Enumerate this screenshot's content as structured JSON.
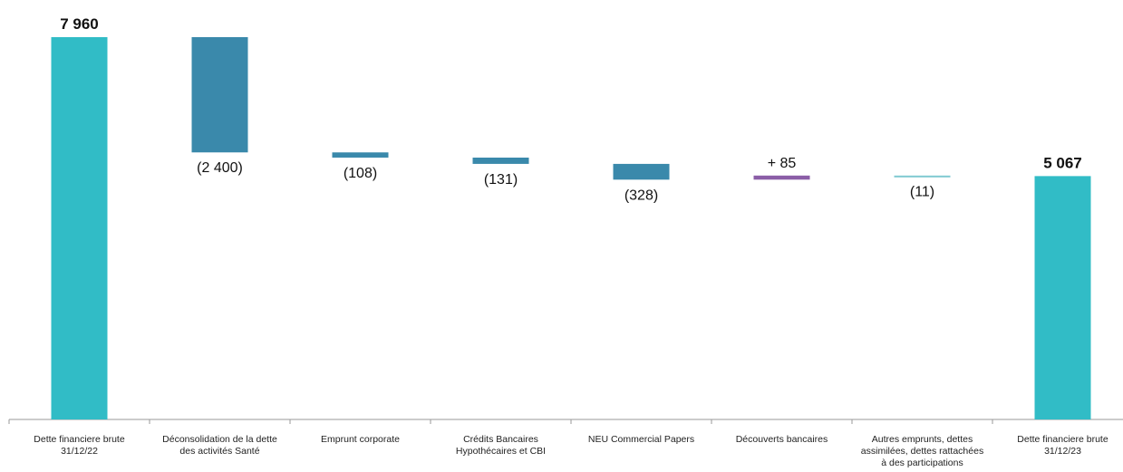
{
  "chart_data": {
    "type": "waterfall",
    "categories": [
      "Dette financiere brute\n31/12/22",
      "Déconsolidation de la dette\ndes activités Santé",
      "Emprunt corporate",
      "Crédits Bancaires\nHypothécaires et CBI",
      "NEU Commercial Papers",
      "Découverts bancaires",
      "Autres emprunts, dettes\nassimilées, dettes rattachées\nà des participations",
      "Dette financiere brute\n31/12/23"
    ],
    "values": [
      7960,
      -2400,
      -108,
      -131,
      -328,
      85,
      -11,
      5067
    ],
    "kinds": [
      "total",
      "delta",
      "delta",
      "delta",
      "delta",
      "delta",
      "delta",
      "total"
    ],
    "labels": [
      "7 960",
      "(2 400)",
      "(108)",
      "(131)",
      "(328)",
      "+ 85",
      "(11)",
      "5 067"
    ],
    "ylim": [
      0,
      7960
    ],
    "grid": false,
    "colors": {
      "total": "#31bcc6",
      "decrease": "#3a89ab",
      "increase": "#8b5ea7",
      "small_decrease": "#7fc9d1",
      "axis": "#999999"
    }
  }
}
